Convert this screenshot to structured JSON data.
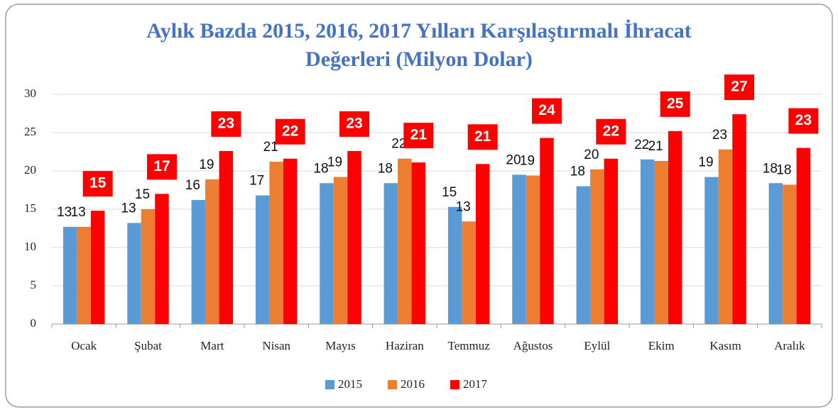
{
  "chart_data": {
    "type": "bar",
    "title": [
      "Aylık Bazda 2015, 2016, 2017 Yılları Karşılaştırmalı İhracat",
      "Değerleri (Milyon Dolar)"
    ],
    "categories": [
      "Ocak",
      "Şubat",
      "Mart",
      "Nisan",
      "Mayıs",
      "Haziran",
      "Temmuz",
      "Ağustos",
      "Eylül",
      "Ekim",
      "Kasım",
      "Aralık"
    ],
    "series": [
      {
        "name": "2015",
        "color": "#5b9bd5",
        "values": [
          12.7,
          13.2,
          16.2,
          16.8,
          18.4,
          18.4,
          15.3,
          19.5,
          18.0,
          21.5,
          19.2,
          18.4
        ],
        "value_labels": [
          "13",
          "13",
          "16",
          "17",
          "18",
          "18",
          "15",
          "20",
          "18",
          "22",
          "19",
          "18"
        ]
      },
      {
        "name": "2016",
        "color": "#ed7d31",
        "values": [
          12.7,
          15.0,
          18.9,
          21.2,
          19.2,
          21.6,
          13.4,
          19.4,
          20.2,
          21.3,
          22.8,
          18.2
        ],
        "value_labels": [
          "13",
          "15",
          "19",
          "21",
          "19",
          "22",
          "13",
          "19",
          "20",
          "21",
          "23",
          "18"
        ]
      },
      {
        "name": "2017",
        "color": "#ff0000",
        "values": [
          14.8,
          17.0,
          22.6,
          21.6,
          22.6,
          21.1,
          20.9,
          24.3,
          21.6,
          25.2,
          27.4,
          23.0
        ],
        "value_labels": [
          "15",
          "17",
          "23",
          "22",
          "23",
          "21",
          "21",
          "24",
          "22",
          "25",
          "27",
          "23"
        ]
      }
    ],
    "ylim": [
      0,
      30
    ],
    "yticks": [
      0,
      5,
      10,
      15,
      20,
      25,
      30
    ],
    "grid": true,
    "legend": "bottom"
  }
}
